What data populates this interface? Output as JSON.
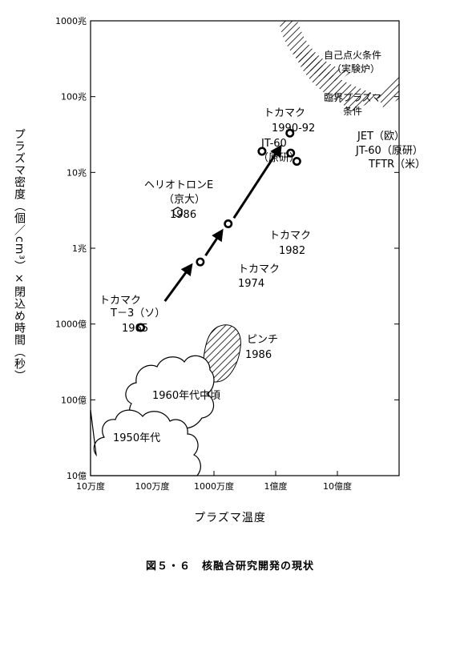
{
  "chart_data": {
    "type": "scatter",
    "xlabel": "プラズマ温度",
    "ylabel": "プラズマ密度（個／cm³）×閉込め時間（秒）",
    "x_scale": "log",
    "y_scale": "log",
    "xlim": [
      100000,
      10000000000
    ],
    "ylim": [
      1000000000,
      1000000000000000
    ],
    "x_ticks": [
      {
        "value": 100000,
        "label": "10万度"
      },
      {
        "value": 1000000,
        "label": "100万度"
      },
      {
        "value": 10000000,
        "label": "1000万度"
      },
      {
        "value": 100000000,
        "label": "1億度"
      },
      {
        "value": 1000000000,
        "label": "10億度"
      }
    ],
    "y_ticks": [
      {
        "value": 1000000000,
        "label": "10億"
      },
      {
        "value": 10000000000,
        "label": "100億"
      },
      {
        "value": 100000000000,
        "label": "1000億"
      },
      {
        "value": 1000000000000,
        "label": "1兆"
      },
      {
        "value": 10000000000000,
        "label": "10兆"
      },
      {
        "value": 100000000000000,
        "label": "100兆"
      },
      {
        "value": 1000000000000000,
        "label": "1000兆"
      }
    ],
    "points": [
      {
        "id": "t3",
        "x": 650000,
        "y": 90000000000,
        "marker": "circle",
        "lines": [
          "トカマク",
          "T－3（ソ）",
          "1965"
        ]
      },
      {
        "id": "tok1974",
        "x": 6000000,
        "y": 660000000000,
        "marker": "circle",
        "lines": [
          "トカマク",
          "1974"
        ]
      },
      {
        "id": "tok1982",
        "x": 17000000,
        "y": 2100000000000,
        "marker": "circle",
        "lines": [
          "トカマク",
          "1982"
        ]
      },
      {
        "id": "heliotron",
        "x": 2600000,
        "y": 3000000000000,
        "marker": "hexagon",
        "lines": [
          "ヘリオトロンE",
          "（京大）",
          "1986"
        ]
      },
      {
        "id": "jt60a",
        "x": 60000000,
        "y": 19000000000000,
        "marker": "circle",
        "lines": [
          "JT-60",
          "（原研）"
        ]
      },
      {
        "id": "jet",
        "x": 170000000,
        "y": 33000000000000,
        "marker": "circle",
        "lines": [
          "JET（欧）"
        ]
      },
      {
        "id": "jt60b",
        "x": 175000000,
        "y": 18000000000000,
        "marker": "circle",
        "lines": [
          "JT-60（原研）"
        ]
      },
      {
        "id": "tftr",
        "x": 220000000,
        "y": 14000000000000,
        "marker": "circle",
        "lines": [
          "TFTR（米）"
        ]
      }
    ],
    "group_label": [
      "トカマク",
      "1990-92"
    ],
    "arrows": [
      {
        "from": [
          1600000,
          200000000000
        ],
        "to": [
          4300000,
          600000000000
        ]
      },
      {
        "from": [
          7300000,
          800000000000
        ],
        "to": [
          13500000,
          1700000000000
        ]
      },
      {
        "from": [
          21000000,
          2500000000000
        ],
        "to": [
          120000000,
          22000000000000
        ]
      }
    ],
    "regions": [
      {
        "id": "ignition",
        "label": [
          "自己点火条件",
          "（実験炉）"
        ]
      },
      {
        "id": "breakeven",
        "label": [
          "臨界プラズマ",
          "条件"
        ]
      },
      {
        "id": "pinch",
        "label": [
          "ピンチ",
          "1986"
        ]
      },
      {
        "id": "mid1960s",
        "label": [
          "1960年代中頃"
        ]
      },
      {
        "id": "1950s",
        "label": [
          "1950年代"
        ]
      }
    ]
  },
  "caption": "図５・６　核融合研究開発の現状"
}
